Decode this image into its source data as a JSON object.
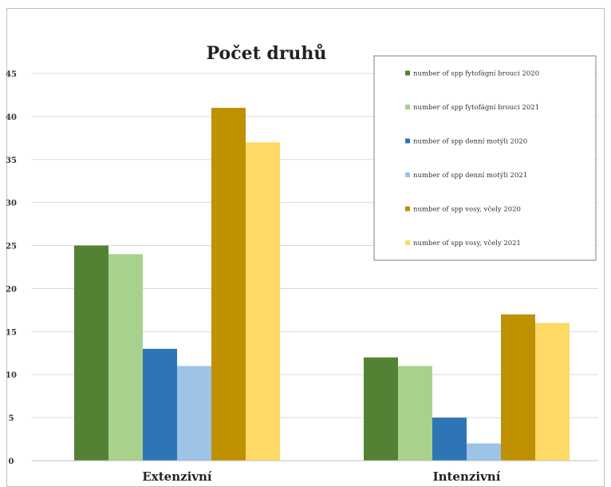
{
  "chart_data": {
    "type": "bar",
    "title": "Počet druhů",
    "xlabel": "",
    "ylabel": "",
    "categories": [
      "Extenzivní",
      "Intenzivní"
    ],
    "ylim": [
      0,
      45
    ],
    "yticks": [
      0,
      5,
      10,
      15,
      20,
      25,
      30,
      35,
      40,
      45
    ],
    "grid": true,
    "legend_position": "top-right",
    "series": [
      {
        "name": "number of spp fytofágní brouci 2020",
        "values": [
          25,
          12
        ],
        "color": "#548235"
      },
      {
        "name": "number of spp fytofágní brouci 2021",
        "values": [
          24,
          11
        ],
        "color": "#a9d18e"
      },
      {
        "name": "number of spp denní motýli 2020",
        "values": [
          13,
          5
        ],
        "color": "#2e75b6"
      },
      {
        "name": "number of spp denní motýli 2021",
        "values": [
          11,
          2
        ],
        "color": "#9dc3e6"
      },
      {
        "name": "number of spp vosy, včely 2020",
        "values": [
          41,
          17
        ],
        "color": "#bf9000"
      },
      {
        "name": "number of spp vosy, včely 2021",
        "values": [
          37,
          16
        ],
        "color": "#ffd966"
      }
    ]
  }
}
